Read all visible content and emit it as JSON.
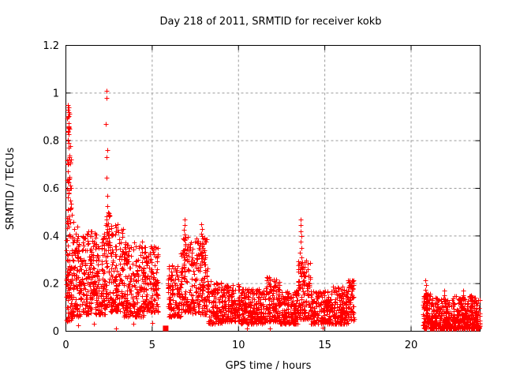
{
  "chart_data": {
    "type": "scatter",
    "title": "Day 218 of 2011, SRMTID for receiver kokb",
    "xlabel": "GPS time / hours",
    "ylabel": "SRMTID / TECUs",
    "xlim": [
      0,
      24
    ],
    "ylim": [
      0,
      1.2
    ],
    "xticks": {
      "values": [
        0,
        5,
        10,
        15,
        20
      ],
      "labels": [
        "0",
        "5",
        "10",
        "15",
        "20"
      ]
    },
    "yticks": {
      "values": [
        0,
        0.2,
        0.4,
        0.6,
        0.8,
        1.0,
        1.2
      ],
      "labels": [
        "0",
        "0.2",
        "0.4",
        "0.6",
        "0.8",
        "1",
        "1.2"
      ]
    },
    "grid": {
      "visible": true,
      "style": "dotted",
      "color": "#9b9b9b"
    },
    "legend": "none",
    "marker": {
      "shape": "plus",
      "color": "#ff0000",
      "size": 7
    },
    "axis_color": "#000000",
    "background_color": "#ffffff",
    "seed": 42,
    "series": [
      {
        "name": "SRMTID",
        "point_clusters": [
          {
            "x0": 0.02,
            "x1": 0.35,
            "n": 70,
            "y_min": 0.04,
            "y_max": 0.3,
            "skew": 1.2
          },
          {
            "x0": 0.02,
            "x1": 0.3,
            "n": 45,
            "y_min": 0.3,
            "y_max": 0.78,
            "skew": 1.0
          },
          {
            "x0": 0.05,
            "x1": 0.25,
            "n": 10,
            "y_min": 0.78,
            "y_max": 0.95,
            "skew": 1.0
          },
          {
            "x0": 0.3,
            "x1": 0.95,
            "n": 120,
            "y_min": 0.06,
            "y_max": 0.4,
            "skew": 1.4
          },
          {
            "x0": 0.95,
            "x1": 2.25,
            "n": 260,
            "y_min": 0.07,
            "y_max": 0.42,
            "skew": 1.5
          },
          {
            "x0": 2.25,
            "x1": 2.55,
            "n": 60,
            "y_min": 0.1,
            "y_max": 0.5,
            "skew": 1.3
          },
          {
            "x0": 2.55,
            "x1": 3.3,
            "n": 140,
            "y_min": 0.08,
            "y_max": 0.45,
            "skew": 1.5
          },
          {
            "x0": 3.3,
            "x1": 4.5,
            "n": 200,
            "y_min": 0.06,
            "y_max": 0.38,
            "skew": 1.5
          },
          {
            "x0": 4.5,
            "x1": 5.35,
            "n": 150,
            "y_min": 0.08,
            "y_max": 0.36,
            "skew": 1.4
          },
          {
            "x0": 5.9,
            "x1": 6.65,
            "n": 120,
            "y_min": 0.06,
            "y_max": 0.28,
            "skew": 1.5
          },
          {
            "x0": 6.65,
            "x1": 7.35,
            "n": 120,
            "y_min": 0.08,
            "y_max": 0.4,
            "skew": 1.4
          },
          {
            "x0": 7.35,
            "x1": 8.2,
            "n": 140,
            "y_min": 0.07,
            "y_max": 0.4,
            "skew": 1.5
          },
          {
            "x0": 8.2,
            "x1": 9.05,
            "n": 120,
            "y_min": 0.03,
            "y_max": 0.22,
            "skew": 1.5
          },
          {
            "x0": 9.05,
            "x1": 10.1,
            "n": 150,
            "y_min": 0.04,
            "y_max": 0.2,
            "skew": 1.5
          },
          {
            "x0": 10.1,
            "x1": 11.6,
            "n": 230,
            "y_min": 0.03,
            "y_max": 0.18,
            "skew": 1.5
          },
          {
            "x0": 11.6,
            "x1": 12.4,
            "n": 130,
            "y_min": 0.04,
            "y_max": 0.23,
            "skew": 1.5
          },
          {
            "x0": 12.4,
            "x1": 13.45,
            "n": 160,
            "y_min": 0.03,
            "y_max": 0.17,
            "skew": 1.5
          },
          {
            "x0": 13.45,
            "x1": 14.15,
            "n": 120,
            "y_min": 0.05,
            "y_max": 0.3,
            "skew": 1.4
          },
          {
            "x0": 14.15,
            "x1": 15.3,
            "n": 170,
            "y_min": 0.03,
            "y_max": 0.17,
            "skew": 1.5
          },
          {
            "x0": 15.3,
            "x1": 16.35,
            "n": 160,
            "y_min": 0.03,
            "y_max": 0.19,
            "skew": 1.4
          },
          {
            "x0": 16.35,
            "x1": 16.7,
            "n": 55,
            "y_min": 0.04,
            "y_max": 0.22,
            "skew": 1.2
          },
          {
            "x0": 20.68,
            "x1": 21.4,
            "n": 130,
            "y_min": 0.01,
            "y_max": 0.16,
            "skew": 1.6
          },
          {
            "x0": 21.4,
            "x1": 22.5,
            "n": 200,
            "y_min": 0.01,
            "y_max": 0.14,
            "skew": 1.7
          },
          {
            "x0": 22.5,
            "x1": 23.5,
            "n": 190,
            "y_min": 0.01,
            "y_max": 0.15,
            "skew": 1.7
          },
          {
            "x0": 23.5,
            "x1": 24.0,
            "n": 100,
            "y_min": 0.01,
            "y_max": 0.14,
            "skew": 1.6
          }
        ],
        "spike_points": [
          [
            0.1,
            0.95
          ],
          [
            0.13,
            0.93
          ],
          [
            0.16,
            0.94
          ],
          [
            0.12,
            0.9
          ],
          [
            0.18,
            0.92
          ],
          [
            0.15,
            0.86
          ],
          [
            0.2,
            0.85
          ],
          [
            0.11,
            0.84
          ],
          [
            0.14,
            0.79
          ],
          [
            0.17,
            0.77
          ],
          [
            0.21,
            0.73
          ],
          [
            0.1,
            0.7
          ],
          [
            0.13,
            0.67
          ],
          [
            0.19,
            0.64
          ],
          [
            0.24,
            0.61
          ],
          [
            0.16,
            0.58
          ],
          [
            0.27,
            0.55
          ],
          [
            0.31,
            0.52
          ],
          [
            0.36,
            0.49
          ],
          [
            0.42,
            0.46
          ],
          [
            0.5,
            0.43
          ],
          [
            0.58,
            0.41
          ],
          [
            0.65,
            0.44
          ],
          [
            0.72,
            0.4
          ],
          [
            2.35,
            1.01
          ],
          [
            2.37,
            0.98
          ],
          [
            2.33,
            0.87
          ],
          [
            2.4,
            0.76
          ],
          [
            2.36,
            0.73
          ],
          [
            2.34,
            0.645
          ],
          [
            2.39,
            0.57
          ],
          [
            2.42,
            0.525
          ],
          [
            2.35,
            0.47
          ],
          [
            2.31,
            0.445
          ],
          [
            2.44,
            0.41
          ],
          [
            2.38,
            0.37
          ],
          [
            2.46,
            0.34
          ],
          [
            6.86,
            0.47
          ],
          [
            6.88,
            0.445
          ],
          [
            6.84,
            0.425
          ],
          [
            6.9,
            0.405
          ],
          [
            6.87,
            0.385
          ],
          [
            6.92,
            0.36
          ],
          [
            6.82,
            0.34
          ],
          [
            6.95,
            0.32
          ],
          [
            6.89,
            0.3
          ],
          [
            6.84,
            0.285
          ],
          [
            7.86,
            0.45
          ],
          [
            7.89,
            0.43
          ],
          [
            7.84,
            0.41
          ],
          [
            7.91,
            0.39
          ],
          [
            7.87,
            0.37
          ],
          [
            7.93,
            0.35
          ],
          [
            7.83,
            0.33
          ],
          [
            7.95,
            0.31
          ],
          [
            7.88,
            0.295
          ],
          [
            8.02,
            0.34
          ],
          [
            8.05,
            0.31
          ],
          [
            8.08,
            0.28
          ],
          [
            9.0,
            0.2
          ],
          [
            9.02,
            0.185
          ],
          [
            8.98,
            0.17
          ],
          [
            12.05,
            0.21
          ],
          [
            12.08,
            0.19
          ],
          [
            12.02,
            0.175
          ],
          [
            13.6,
            0.47
          ],
          [
            13.62,
            0.445
          ],
          [
            13.58,
            0.42
          ],
          [
            13.64,
            0.4
          ],
          [
            13.61,
            0.375
          ],
          [
            13.66,
            0.35
          ],
          [
            13.57,
            0.33
          ],
          [
            13.63,
            0.31
          ],
          [
            13.68,
            0.29
          ],
          [
            13.6,
            0.27
          ],
          [
            13.7,
            0.25
          ],
          [
            13.65,
            0.23
          ],
          [
            13.72,
            0.21
          ],
          [
            16.45,
            0.215
          ],
          [
            16.5,
            0.19
          ],
          [
            16.55,
            0.17
          ],
          [
            16.6,
            0.14
          ],
          [
            20.84,
            0.215
          ],
          [
            20.86,
            0.195
          ],
          [
            20.82,
            0.175
          ],
          [
            20.87,
            0.155
          ],
          [
            20.85,
            0.135
          ],
          [
            21.9,
            0.17
          ],
          [
            21.92,
            0.15
          ],
          [
            21.88,
            0.135
          ],
          [
            23.0,
            0.17
          ],
          [
            23.02,
            0.15
          ],
          [
            23.5,
            0.145
          ],
          [
            23.55,
            0.13
          ]
        ],
        "outlier_points": [
          [
            0.7,
            0.025
          ],
          [
            1.6,
            0.03
          ],
          [
            2.9,
            0.013
          ],
          [
            3.9,
            0.03
          ],
          [
            5.0,
            0.035
          ],
          [
            8.85,
            0.035
          ],
          [
            10.5,
            0.012
          ],
          [
            11.8,
            0.01
          ],
          [
            14.9,
            0.015
          ]
        ]
      }
    ],
    "gap_marker": {
      "x": 5.78,
      "y": 0.012,
      "shape": "filled-square",
      "color": "#ff0000"
    }
  }
}
